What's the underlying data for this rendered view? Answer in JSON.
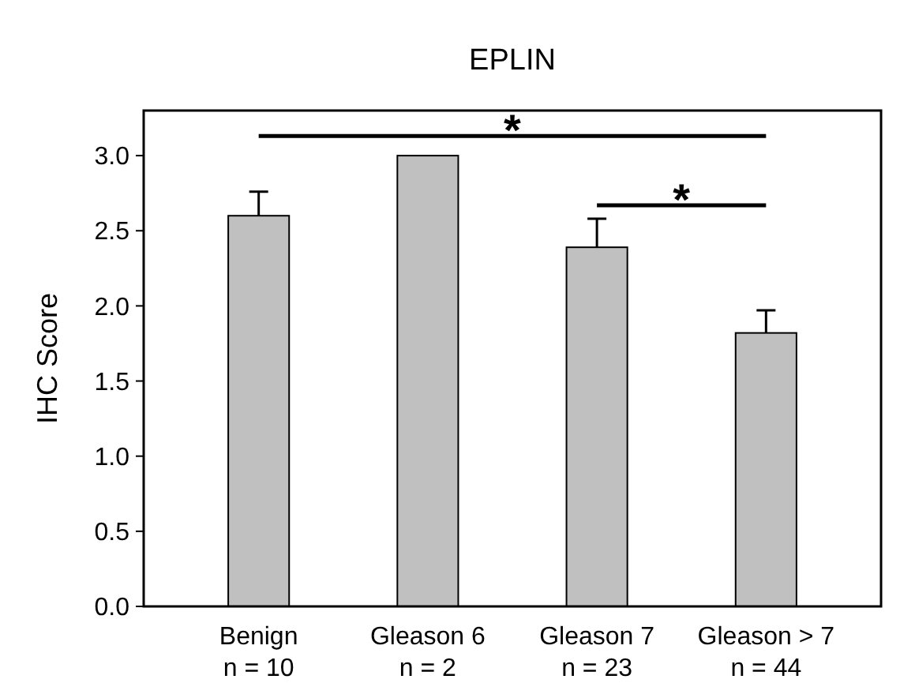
{
  "chart_data": {
    "type": "bar",
    "title": "EPLIN",
    "ylabel": "IHC Score",
    "categories": [
      "Benign\nn = 10",
      "Gleason 6\nn = 2",
      "Gleason 7\nn = 23",
      "Gleason > 7\nn = 44"
    ],
    "values": [
      2.6,
      3.0,
      2.39,
      1.82
    ],
    "color": "#c0c0c0",
    "errors": [
      [
        2.6,
        2.76
      ],
      null,
      [
        2.39,
        2.58
      ],
      [
        1.82,
        1.97
      ]
    ],
    "ylim": [
      0,
      3.3
    ],
    "yticks": [
      {
        "value": 0,
        "label": "0.0"
      },
      {
        "value": 0.5,
        "label": "0.5"
      },
      {
        "value": 1,
        "label": "1.0"
      },
      {
        "value": 1.5,
        "label": "1.5"
      },
      {
        "value": 2,
        "label": "2.0"
      },
      {
        "value": 2.5,
        "label": "2.5"
      },
      {
        "value": 3,
        "label": "3.0"
      }
    ],
    "annotations": [
      "*",
      "*"
    ],
    "grid": false
  }
}
